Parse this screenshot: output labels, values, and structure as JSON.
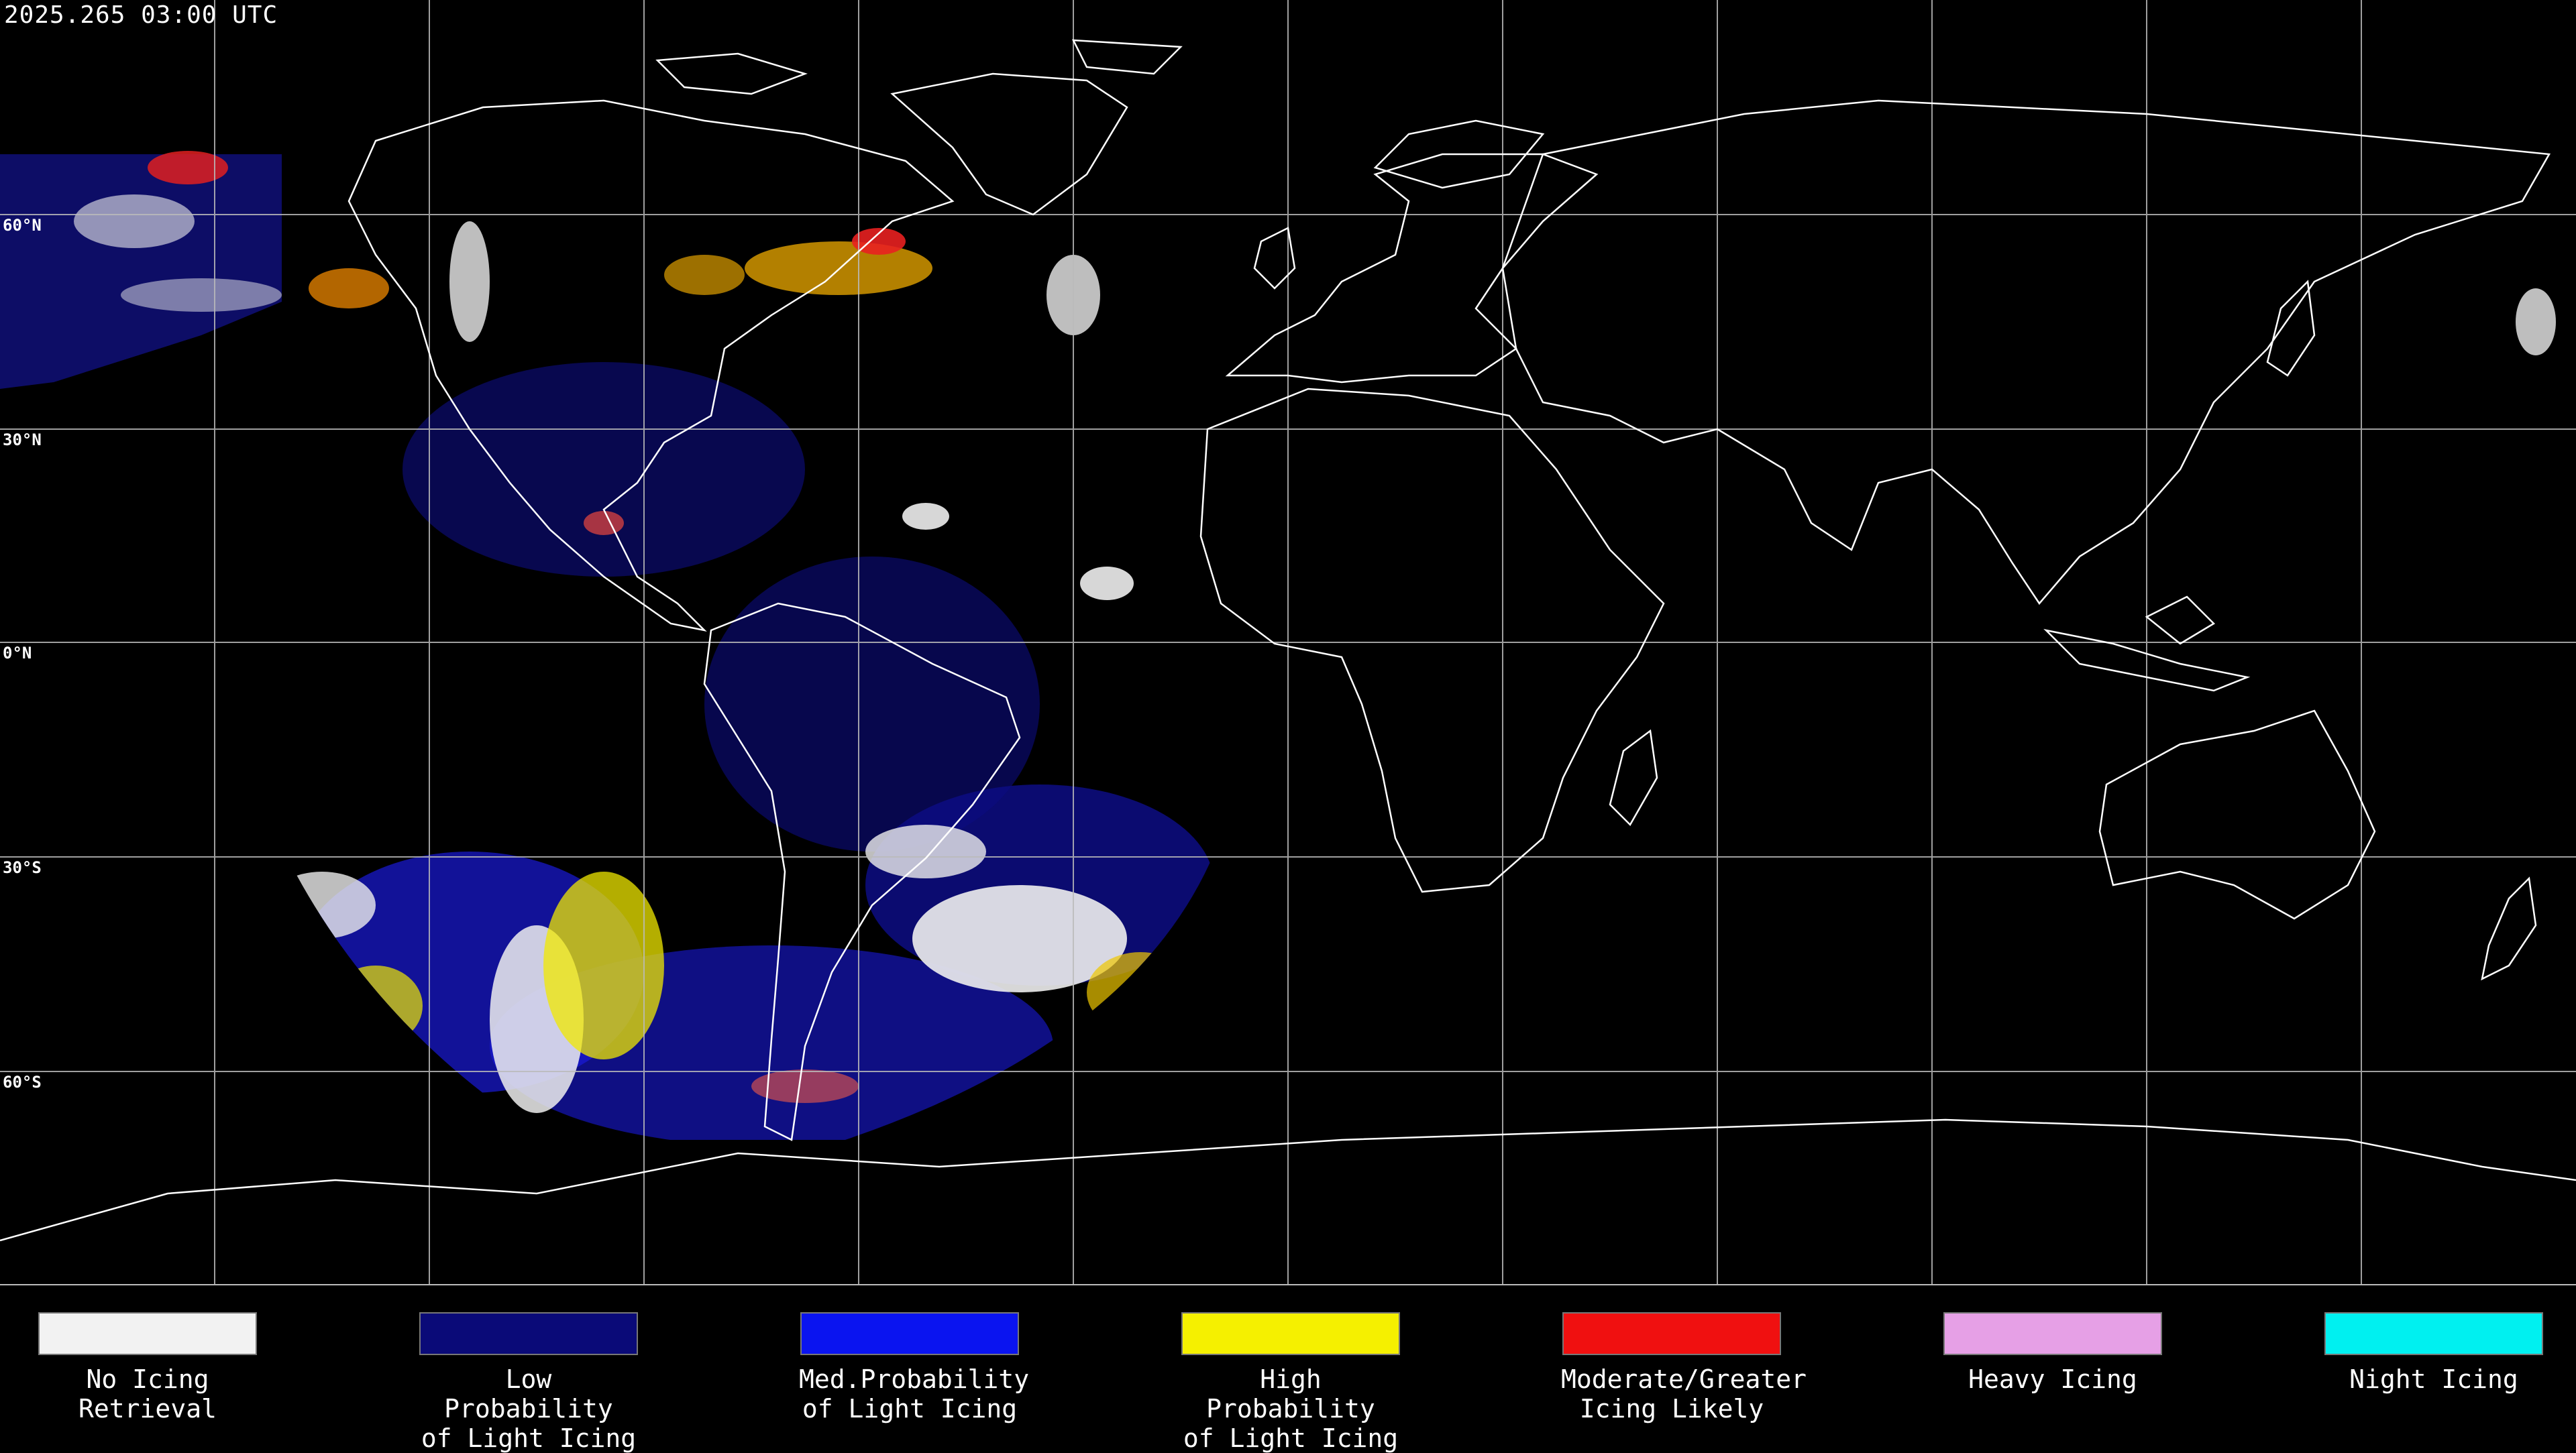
{
  "header": {
    "timestamp": "2025.265 03:00 UTC"
  },
  "map": {
    "projection": "cylindrical (equirectangular)",
    "latitude_labels": [
      "60°N",
      "30°N",
      "0°N",
      "30°S",
      "60°S"
    ],
    "graticule_spacing_degrees": 30
  },
  "legend": {
    "items": [
      {
        "label": "No Icing\nRetrieval",
        "color": "#f2f2f2"
      },
      {
        "label": "Low Probability\nof Light Icing",
        "color": "#0a0a78"
      },
      {
        "label": "Med.Probability\nof Light Icing",
        "color": "#0a14f0"
      },
      {
        "label": "High Probability\nof Light Icing",
        "color": "#f5f000"
      },
      {
        "label": "Moderate/Greater\nIcing Likely",
        "color": "#f01010"
      },
      {
        "label": "Heavy Icing",
        "color": "#e6a0e6"
      },
      {
        "label": "Night Icing",
        "color": "#00f0f0"
      }
    ]
  }
}
